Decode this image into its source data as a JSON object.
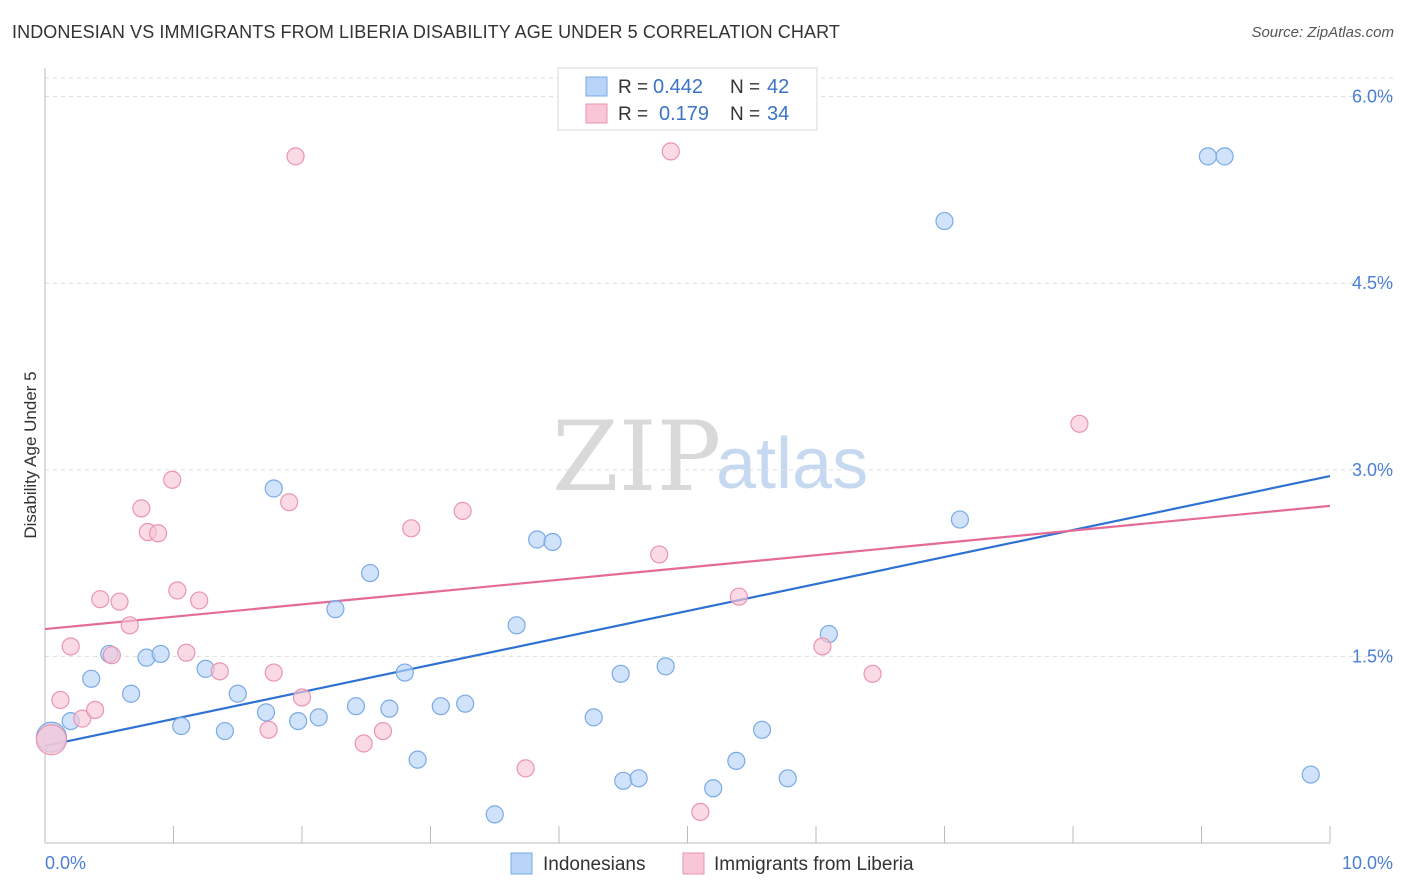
{
  "header": {
    "title": "INDONESIAN VS IMMIGRANTS FROM LIBERIA DISABILITY AGE UNDER 5 CORRELATION CHART",
    "source": "Source: ZipAtlas.com"
  },
  "watermark": {
    "zip": "ZIP",
    "atlas": "atlas"
  },
  "legend": {
    "rows": [
      {
        "r_label": "R =",
        "r_value": "0.442",
        "n_label": "N =",
        "n_value": "42"
      },
      {
        "r_label": "R =",
        "r_value": "0.179",
        "n_label": "N =",
        "n_value": "34"
      }
    ]
  },
  "colors": {
    "blue_fill": "#b8d4f7",
    "blue_stroke": "#7aaae6",
    "blue_line": "#2f72d2",
    "pink_fill": "#f8c6d6",
    "pink_stroke": "#eb94b2",
    "pink_line": "#e56b97",
    "tick_text": "#4a7fd4",
    "grid": "#dddddd"
  },
  "chart_data": {
    "type": "scatter",
    "title": "INDONESIAN VS IMMIGRANTS FROM LIBERIA DISABILITY AGE UNDER 5 CORRELATION CHART",
    "xlabel": "",
    "ylabel": "Disability Age Under 5",
    "xlim": [
      0,
      10
    ],
    "ylim": [
      0,
      6.15
    ],
    "x_tick_labels": [
      "0.0%",
      "10.0%"
    ],
    "y_ticks": [
      1.5,
      3.0,
      4.5,
      6.0
    ],
    "y_tick_labels": [
      "1.5%",
      "3.0%",
      "4.5%",
      "6.0%"
    ],
    "grid": "horizontal dashed",
    "legend_position": "top-center",
    "series": [
      {
        "name": "Indonesians",
        "color": "#b8d4f7",
        "trend": {
          "x": [
            0,
            10
          ],
          "y": [
            0.78,
            2.95
          ]
        },
        "points": [
          [
            0.05,
            0.85
          ],
          [
            0.2,
            0.98
          ],
          [
            0.36,
            1.32
          ],
          [
            0.5,
            1.52
          ],
          [
            0.67,
            1.2
          ],
          [
            0.79,
            1.49
          ],
          [
            0.9,
            1.52
          ],
          [
            1.06,
            0.94
          ],
          [
            1.25,
            1.4
          ],
          [
            1.4,
            0.9
          ],
          [
            1.5,
            1.2
          ],
          [
            1.72,
            1.05
          ],
          [
            1.78,
            2.85
          ],
          [
            1.97,
            0.98
          ],
          [
            2.13,
            1.01
          ],
          [
            2.26,
            1.88
          ],
          [
            2.42,
            1.1
          ],
          [
            2.53,
            2.17
          ],
          [
            2.68,
            1.08
          ],
          [
            2.8,
            1.37
          ],
          [
            2.9,
            0.67
          ],
          [
            3.08,
            1.1
          ],
          [
            3.27,
            1.12
          ],
          [
            3.5,
            0.23
          ],
          [
            3.67,
            1.75
          ],
          [
            3.83,
            2.44
          ],
          [
            3.95,
            2.42
          ],
          [
            4.27,
            1.01
          ],
          [
            4.48,
            1.36
          ],
          [
            4.5,
            0.5
          ],
          [
            4.62,
            0.52
          ],
          [
            4.83,
            1.42
          ],
          [
            5.2,
            0.44
          ],
          [
            5.38,
            0.66
          ],
          [
            5.58,
            0.91
          ],
          [
            5.78,
            0.52
          ],
          [
            6.1,
            1.68
          ],
          [
            7.0,
            5.0
          ],
          [
            7.12,
            2.6
          ],
          [
            9.05,
            5.52
          ],
          [
            9.18,
            5.52
          ],
          [
            9.85,
            0.55
          ]
        ]
      },
      {
        "name": "Immigrants from Liberia",
        "color": "#f8c6d6",
        "trend": {
          "x": [
            0,
            10
          ],
          "y": [
            1.72,
            2.71
          ]
        },
        "points": [
          [
            0.05,
            0.83
          ],
          [
            0.12,
            1.15
          ],
          [
            0.2,
            1.58
          ],
          [
            0.29,
            1.0
          ],
          [
            0.39,
            1.07
          ],
          [
            0.43,
            1.96
          ],
          [
            0.52,
            1.51
          ],
          [
            0.58,
            1.94
          ],
          [
            0.66,
            1.75
          ],
          [
            0.75,
            2.69
          ],
          [
            0.8,
            2.5
          ],
          [
            0.88,
            2.49
          ],
          [
            0.99,
            2.92
          ],
          [
            1.03,
            2.03
          ],
          [
            1.1,
            1.53
          ],
          [
            1.2,
            1.95
          ],
          [
            1.36,
            1.38
          ],
          [
            1.74,
            0.91
          ],
          [
            1.78,
            1.37
          ],
          [
            1.9,
            2.74
          ],
          [
            2.0,
            1.17
          ],
          [
            2.48,
            0.8
          ],
          [
            2.63,
            0.9
          ],
          [
            2.85,
            2.53
          ],
          [
            3.25,
            2.67
          ],
          [
            3.74,
            0.6
          ],
          [
            4.78,
            2.32
          ],
          [
            4.87,
            5.56
          ],
          [
            5.1,
            0.25
          ],
          [
            5.4,
            1.98
          ],
          [
            6.05,
            1.58
          ],
          [
            6.44,
            1.36
          ],
          [
            8.05,
            3.37
          ],
          [
            1.95,
            5.52
          ]
        ]
      }
    ]
  }
}
